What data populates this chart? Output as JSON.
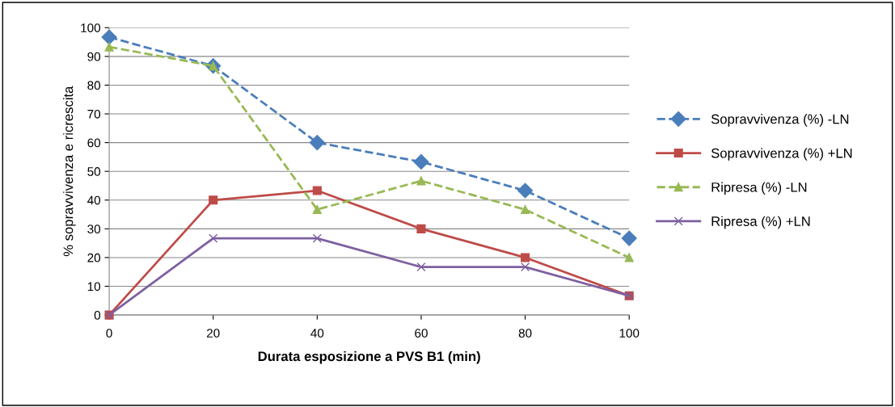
{
  "chart_data": {
    "type": "line",
    "xlabel": "Durata esposizione a PVS B1 (min)",
    "ylabel": "% sopravvivenza e ricrescita",
    "x": [
      0,
      20,
      40,
      60,
      80,
      100
    ],
    "xlim": [
      0,
      100
    ],
    "xticks": [
      0,
      20,
      40,
      60,
      80,
      100
    ],
    "ylim": [
      0,
      100
    ],
    "yticks": [
      0,
      10,
      20,
      30,
      40,
      50,
      60,
      70,
      80,
      90,
      100
    ],
    "grid": "y",
    "legend": "right",
    "series": [
      {
        "name": "Sopravvivenza (%) -LN",
        "color": "#4a7ebb",
        "marker": "diamond",
        "line_style": "dashed",
        "values": [
          96.7,
          86.7,
          60,
          53.3,
          43.3,
          26.7
        ]
      },
      {
        "name": "Sopravvivenza (%) +LN",
        "color": "#be4b48",
        "marker": "square",
        "line_style": "solid",
        "values": [
          0,
          40,
          43.3,
          30,
          20,
          6.7
        ]
      },
      {
        "name": "Ripresa (%) -LN",
        "color": "#98b954",
        "marker": "triangle",
        "line_style": "dashed",
        "values": [
          93.3,
          86.7,
          36.7,
          46.7,
          36.7,
          20
        ]
      },
      {
        "name": "Ripresa (%) +LN",
        "color": "#7d60a0",
        "marker": "cross",
        "line_style": "solid",
        "values": [
          0,
          26.7,
          26.7,
          16.7,
          16.7,
          6.7
        ]
      }
    ]
  }
}
